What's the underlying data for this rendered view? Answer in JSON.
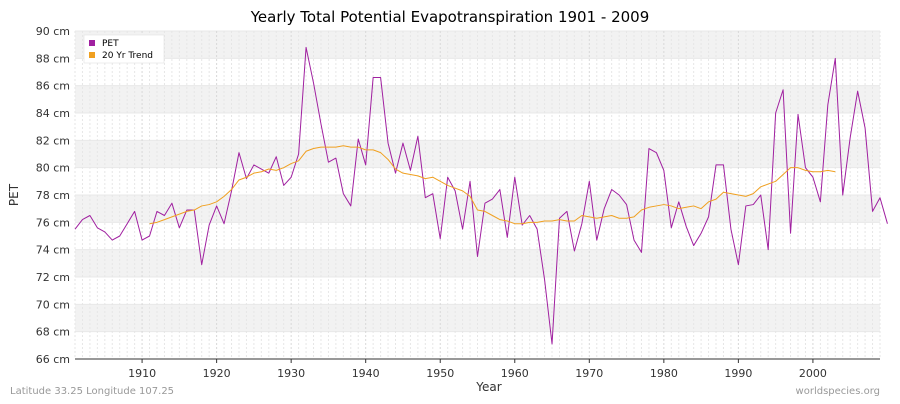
{
  "chart_data": {
    "type": "line",
    "title": "Yearly Total Potential Evapotranspiration 1901 - 2009",
    "xlabel": "Year",
    "ylabel": "PET",
    "xlim": [
      1901,
      2009
    ],
    "ylim": [
      66,
      90
    ],
    "x_ticks": [
      1910,
      1920,
      1930,
      1940,
      1950,
      1960,
      1970,
      1980,
      1990,
      2000
    ],
    "y_ticks": [
      66,
      68,
      70,
      72,
      74,
      76,
      78,
      80,
      82,
      84,
      86,
      88,
      90
    ],
    "y_unit": "cm",
    "grid": true,
    "legend_position": "top-left",
    "series": [
      {
        "name": "PET",
        "color": "#a020a0",
        "x_start": 1901,
        "values": [
          75.5,
          76.2,
          76.5,
          75.6,
          75.3,
          74.7,
          75.0,
          75.9,
          76.8,
          74.7,
          75.0,
          76.8,
          76.5,
          77.4,
          75.6,
          76.9,
          76.9,
          72.9,
          75.8,
          77.2,
          75.9,
          78.3,
          81.1,
          79.2,
          80.2,
          79.9,
          79.6,
          80.8,
          78.7,
          79.3,
          81.0,
          88.8,
          86.2,
          83.2,
          80.4,
          80.7,
          78.1,
          77.2,
          82.1,
          80.2,
          86.6,
          86.6,
          81.8,
          79.6,
          81.8,
          79.8,
          82.3,
          77.8,
          78.1,
          74.8,
          79.3,
          78.3,
          75.5,
          79.0,
          73.5,
          77.4,
          77.7,
          78.4,
          74.9,
          79.3,
          75.8,
          76.5,
          75.5,
          71.8,
          67.1,
          76.3,
          76.8,
          73.9,
          75.9,
          79.0,
          74.7,
          77.0,
          78.4,
          78.0,
          77.3,
          74.7,
          73.8,
          81.4,
          81.1,
          79.8,
          75.6,
          77.5,
          75.7,
          74.3,
          75.2,
          76.4,
          80.2,
          80.2,
          75.5,
          72.9,
          77.2,
          77.3,
          78.0,
          74.0,
          84.0,
          85.7,
          75.2,
          83.9,
          80.0,
          79.3,
          77.5,
          84.6,
          88.0,
          78.0,
          82.2,
          85.6,
          82.9,
          76.8,
          77.8,
          75.9
        ],
        "_note_unused": ""
      },
      {
        "name": "20 Yr Trend",
        "color": "#f0a020",
        "x_start": 1911,
        "values": [
          75.9,
          76.0,
          76.2,
          76.4,
          76.6,
          76.8,
          76.9,
          77.2,
          77.3,
          77.5,
          77.9,
          78.4,
          79.1,
          79.3,
          79.6,
          79.7,
          79.9,
          79.8,
          80.0,
          80.3,
          80.5,
          81.2,
          81.4,
          81.5,
          81.5,
          81.5,
          81.6,
          81.5,
          81.5,
          81.3,
          81.3,
          81.1,
          80.6,
          79.9,
          79.6,
          79.5,
          79.4,
          79.2,
          79.3,
          79.0,
          78.7,
          78.5,
          78.3,
          77.9,
          76.9,
          76.8,
          76.5,
          76.2,
          76.1,
          75.9,
          75.9,
          76.0,
          76.0,
          76.1,
          76.1,
          76.2,
          76.1,
          76.1,
          76.5,
          76.4,
          76.3,
          76.4,
          76.5,
          76.3,
          76.3,
          76.4,
          76.9,
          77.1,
          77.2,
          77.3,
          77.2,
          77.0,
          77.1,
          77.2,
          77.0,
          77.5,
          77.7,
          78.2,
          78.1,
          78.0,
          77.9,
          78.1,
          78.6,
          78.8,
          79.0,
          79.5,
          80.0,
          80.0,
          79.8,
          79.7,
          79.7,
          79.8,
          79.7
        ]
      }
    ],
    "bottom_left_note": "Latitude 33.25 Longitude 107.25",
    "bottom_right_note": "worldspecies.org"
  }
}
